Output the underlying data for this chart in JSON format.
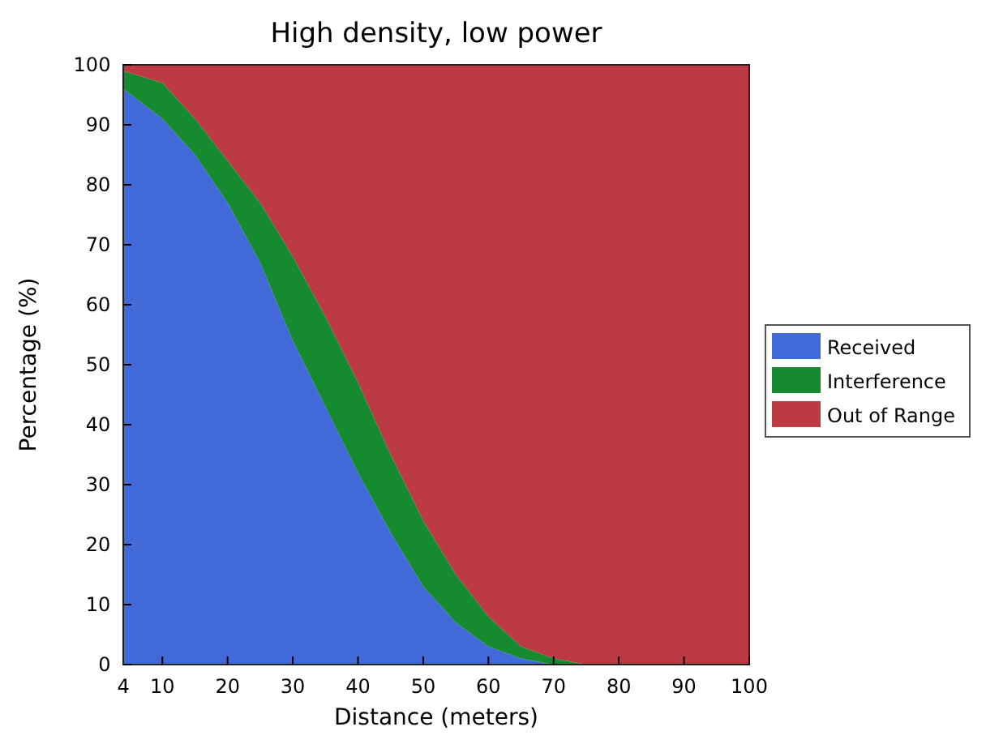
{
  "chart_data": {
    "type": "area",
    "title": "High density, low power",
    "xlabel": "Distance (meters)",
    "ylabel": "Percentage (%)",
    "stacked": true,
    "x": [
      4,
      10,
      15,
      20,
      25,
      30,
      35,
      40,
      45,
      50,
      55,
      60,
      65,
      70,
      75,
      80,
      90,
      100
    ],
    "series": [
      {
        "name": "Received",
        "color": "#4169d8",
        "values": [
          96,
          91,
          85,
          77,
          67,
          54,
          43,
          32,
          22,
          13,
          7,
          3,
          1,
          0,
          0,
          0,
          0,
          0
        ]
      },
      {
        "name": "Interference",
        "color": "#168a2e",
        "values": [
          3,
          6,
          6,
          7,
          10,
          14,
          15,
          15,
          13,
          11,
          8,
          5,
          2,
          1,
          0,
          0,
          0,
          0
        ]
      },
      {
        "name": "Out of Range",
        "color": "#bb3a44",
        "values": [
          1,
          3,
          9,
          16,
          23,
          32,
          42,
          53,
          65,
          76,
          85,
          92,
          97,
          99,
          100,
          100,
          100,
          100
        ]
      }
    ],
    "xlim": [
      4,
      100
    ],
    "xticks": [
      4,
      10,
      20,
      30,
      40,
      50,
      60,
      70,
      80,
      90,
      100
    ],
    "ylim": [
      0,
      100
    ],
    "yticks": [
      0,
      10,
      20,
      30,
      40,
      50,
      60,
      70,
      80,
      90,
      100
    ],
    "legend": "right"
  }
}
